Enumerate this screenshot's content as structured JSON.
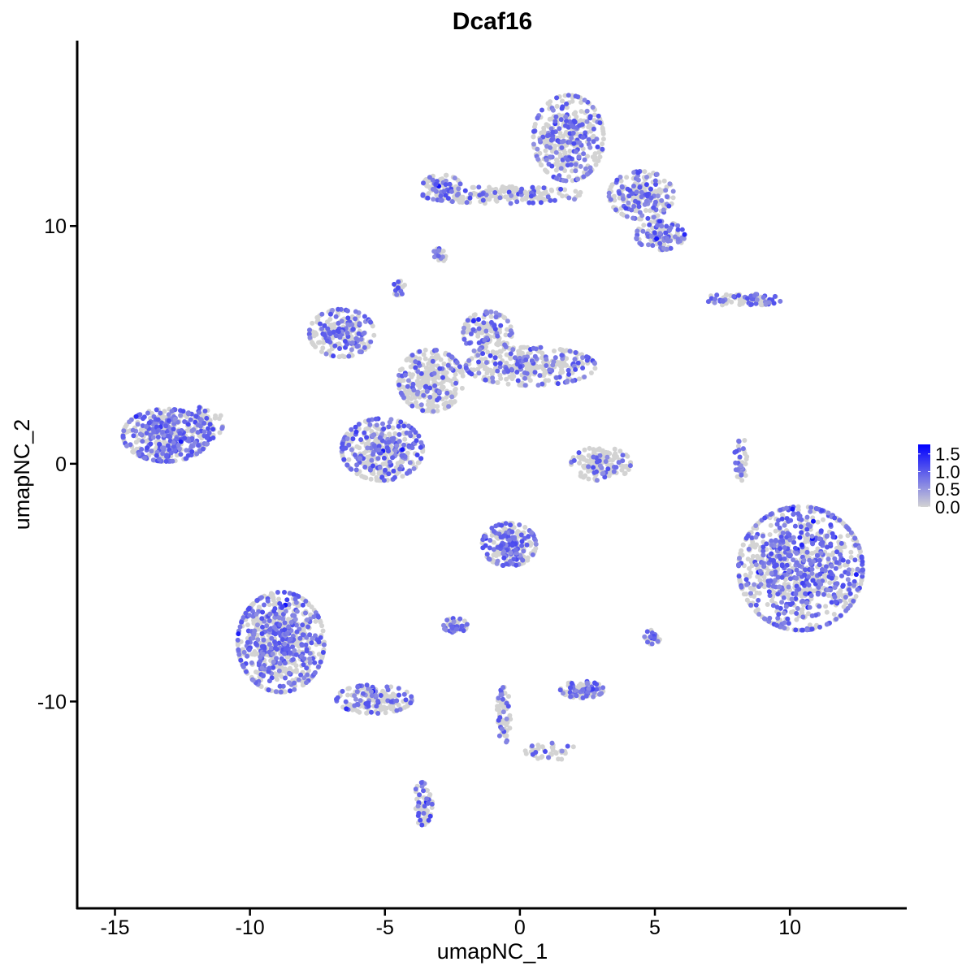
{
  "chart_data": {
    "type": "scatter",
    "title": "Dcaf16",
    "xlabel": "umapNC_1",
    "ylabel": "umapNC_2",
    "xlim": [
      -16.4,
      14.3
    ],
    "ylim": [
      -18.7,
      17.8
    ],
    "xticks": [
      -15,
      -10,
      -5,
      0,
      5,
      10
    ],
    "xtick_labels": [
      "-15",
      "-10",
      "-5",
      "0",
      "5",
      "10"
    ],
    "yticks": [
      -10,
      0,
      10
    ],
    "ytick_labels": [
      "-10",
      "0",
      "10"
    ],
    "grid": false,
    "legend": {
      "placement": "right",
      "type": "colorbar",
      "range": [
        0,
        1.77
      ],
      "ticks": [
        0,
        0.5,
        1.0,
        1.5
      ],
      "tick_labels": [
        "0.0",
        "0.5",
        "1.0",
        "1.5"
      ],
      "low_color": "#d3d3d3",
      "high_color": "#0000ff"
    },
    "clusters": [
      {
        "x": -13.1,
        "y": 1.2,
        "sx": 1.6,
        "sy": 1.1,
        "n": 420,
        "expr_frac": 0.5
      },
      {
        "x": -11.7,
        "y": 1.7,
        "sx": 0.7,
        "sy": 0.7,
        "n": 60,
        "expr_frac": 0.35
      },
      {
        "x": 1.8,
        "y": 13.7,
        "sx": 1.3,
        "sy": 1.8,
        "n": 380,
        "expr_frac": 0.35
      },
      {
        "x": 4.5,
        "y": 11.3,
        "sx": 1.2,
        "sy": 1.0,
        "n": 220,
        "expr_frac": 0.35
      },
      {
        "x": 5.2,
        "y": 9.6,
        "sx": 0.9,
        "sy": 0.6,
        "n": 120,
        "expr_frac": 0.4
      },
      {
        "x": -0.6,
        "y": 11.3,
        "sx": 3.0,
        "sy": 0.35,
        "n": 180,
        "expr_frac": 0.25
      },
      {
        "x": -2.9,
        "y": 11.7,
        "sx": 0.7,
        "sy": 0.45,
        "n": 80,
        "expr_frac": 0.35
      },
      {
        "x": -6.6,
        "y": 5.5,
        "sx": 1.2,
        "sy": 1.0,
        "n": 230,
        "expr_frac": 0.45
      },
      {
        "x": -5.1,
        "y": 0.6,
        "sx": 1.5,
        "sy": 1.3,
        "n": 380,
        "expr_frac": 0.4
      },
      {
        "x": -3.3,
        "y": 3.5,
        "sx": 1.2,
        "sy": 1.3,
        "n": 300,
        "expr_frac": 0.2
      },
      {
        "x": 0.4,
        "y": 4.1,
        "sx": 2.4,
        "sy": 0.8,
        "n": 330,
        "expr_frac": 0.3
      },
      {
        "x": -1.2,
        "y": 5.5,
        "sx": 0.9,
        "sy": 0.9,
        "n": 150,
        "expr_frac": 0.35
      },
      {
        "x": 3.0,
        "y": 0.0,
        "sx": 1.1,
        "sy": 0.7,
        "n": 150,
        "expr_frac": 0.15
      },
      {
        "x": 10.4,
        "y": -4.4,
        "sx": 2.3,
        "sy": 2.6,
        "n": 900,
        "expr_frac": 0.45
      },
      {
        "x": -8.85,
        "y": -7.5,
        "sx": 1.6,
        "sy": 2.1,
        "n": 650,
        "expr_frac": 0.45
      },
      {
        "x": -5.4,
        "y": -9.9,
        "sx": 1.4,
        "sy": 0.6,
        "n": 160,
        "expr_frac": 0.35
      },
      {
        "x": -3.6,
        "y": -14.3,
        "sx": 0.35,
        "sy": 0.9,
        "n": 60,
        "expr_frac": 0.5
      },
      {
        "x": -0.4,
        "y": -3.4,
        "sx": 1.0,
        "sy": 0.9,
        "n": 220,
        "expr_frac": 0.5
      },
      {
        "x": -2.4,
        "y": -6.8,
        "sx": 0.45,
        "sy": 0.3,
        "n": 50,
        "expr_frac": 0.5
      },
      {
        "x": 2.3,
        "y": -9.5,
        "sx": 0.8,
        "sy": 0.35,
        "n": 90,
        "expr_frac": 0.5
      },
      {
        "x": 8.2,
        "y": 6.9,
        "sx": 1.5,
        "sy": 0.25,
        "n": 90,
        "expr_frac": 0.45
      },
      {
        "x": -0.6,
        "y": -10.6,
        "sx": 0.25,
        "sy": 1.2,
        "n": 60,
        "expr_frac": 0.3
      },
      {
        "x": 1.2,
        "y": -12.1,
        "sx": 1.0,
        "sy": 0.35,
        "n": 40,
        "expr_frac": 0.2
      },
      {
        "x": -3.0,
        "y": 8.75,
        "sx": 0.25,
        "sy": 0.3,
        "n": 20,
        "expr_frac": 0.5
      },
      {
        "x": -4.5,
        "y": 7.4,
        "sx": 0.25,
        "sy": 0.3,
        "n": 20,
        "expr_frac": 0.5
      },
      {
        "x": 8.2,
        "y": 0.2,
        "sx": 0.25,
        "sy": 0.9,
        "n": 40,
        "expr_frac": 0.4
      },
      {
        "x": 4.9,
        "y": -7.3,
        "sx": 0.3,
        "sy": 0.3,
        "n": 25,
        "expr_frac": 0.5
      }
    ]
  }
}
